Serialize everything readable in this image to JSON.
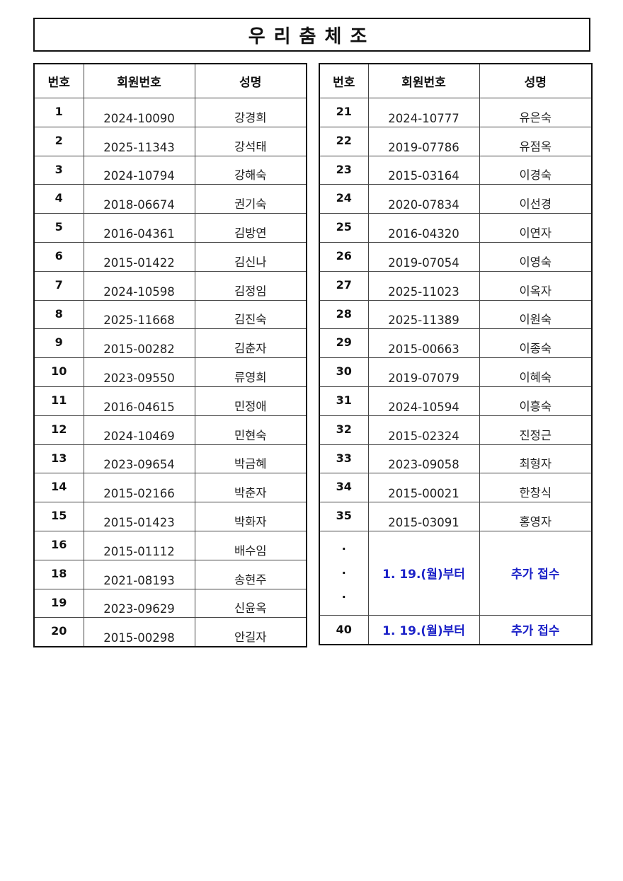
{
  "title": "우리춤체조",
  "headers": {
    "no": "번호",
    "member_id": "회원번호",
    "name": "성명"
  },
  "left_rows": [
    {
      "no": "1",
      "member_id": "2024-10090",
      "name": "강경희"
    },
    {
      "no": "2",
      "member_id": "2025-11343",
      "name": "강석태"
    },
    {
      "no": "3",
      "member_id": "2024-10794",
      "name": "강해숙"
    },
    {
      "no": "4",
      "member_id": "2018-06674",
      "name": "권기숙"
    },
    {
      "no": "5",
      "member_id": "2016-04361",
      "name": "김방연"
    },
    {
      "no": "6",
      "member_id": "2015-01422",
      "name": "김신나"
    },
    {
      "no": "7",
      "member_id": "2024-10598",
      "name": "김정임"
    },
    {
      "no": "8",
      "member_id": "2025-11668",
      "name": "김진숙"
    },
    {
      "no": "9",
      "member_id": "2015-00282",
      "name": "김춘자"
    },
    {
      "no": "10",
      "member_id": "2023-09550",
      "name": "류영희"
    },
    {
      "no": "11",
      "member_id": "2016-04615",
      "name": "민정애"
    },
    {
      "no": "12",
      "member_id": "2024-10469",
      "name": "민현숙"
    },
    {
      "no": "13",
      "member_id": "2023-09654",
      "name": "박금혜"
    },
    {
      "no": "14",
      "member_id": "2015-02166",
      "name": "박춘자"
    },
    {
      "no": "15",
      "member_id": "2015-01423",
      "name": "박화자"
    },
    {
      "no": "16",
      "member_id": "2015-01112",
      "name": "배수임"
    },
    {
      "no": "18",
      "member_id": "2021-08193",
      "name": "송현주"
    },
    {
      "no": "19",
      "member_id": "2023-09629",
      "name": "신윤옥"
    },
    {
      "no": "20",
      "member_id": "2015-00298",
      "name": "안길자"
    }
  ],
  "right_rows": [
    {
      "no": "21",
      "member_id": "2024-10777",
      "name": "유은숙"
    },
    {
      "no": "22",
      "member_id": "2019-07786",
      "name": "유점옥"
    },
    {
      "no": "23",
      "member_id": "2015-03164",
      "name": "이경숙"
    },
    {
      "no": "24",
      "member_id": "2020-07834",
      "name": "이선경"
    },
    {
      "no": "25",
      "member_id": "2016-04320",
      "name": "이연자"
    },
    {
      "no": "26",
      "member_id": "2019-07054",
      "name": "이영숙"
    },
    {
      "no": "27",
      "member_id": "2025-11023",
      "name": "이옥자"
    },
    {
      "no": "28",
      "member_id": "2025-11389",
      "name": "이원숙"
    },
    {
      "no": "29",
      "member_id": "2015-00663",
      "name": "이종숙"
    },
    {
      "no": "30",
      "member_id": "2019-07079",
      "name": "이혜숙"
    },
    {
      "no": "31",
      "member_id": "2024-10594",
      "name": "이흥숙"
    },
    {
      "no": "32",
      "member_id": "2015-02324",
      "name": "진정근"
    },
    {
      "no": "33",
      "member_id": "2023-09058",
      "name": "최형자"
    },
    {
      "no": "34",
      "member_id": "2015-00021",
      "name": "한창식"
    },
    {
      "no": "35",
      "member_id": "2015-03091",
      "name": "홍영자"
    }
  ],
  "notice_rows": [
    {
      "no": "·\n·\n·",
      "member_id": "1.  19.(월)부터",
      "name": "추가  접수"
    },
    {
      "no": "40",
      "member_id": "1.  19.(월)부터",
      "name": "추가  접수"
    }
  ],
  "colors": {
    "notice_text": "#1c22c8",
    "border": "#111111"
  }
}
